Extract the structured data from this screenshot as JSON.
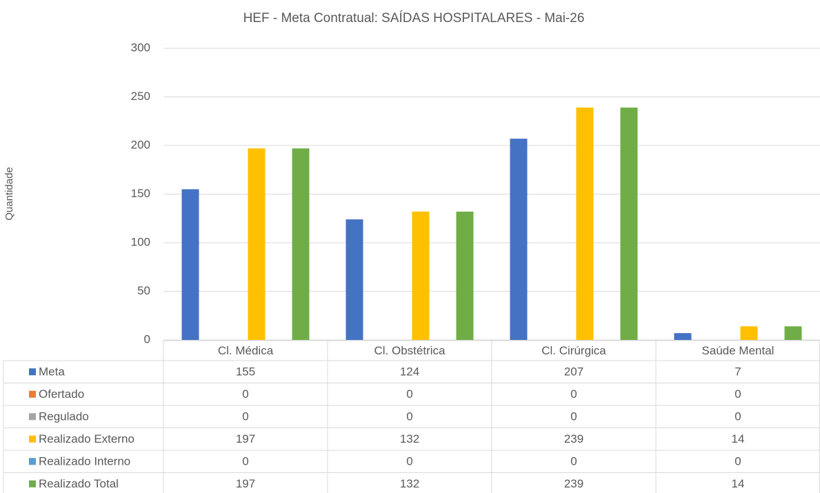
{
  "chart_data": {
    "type": "bar",
    "title": "HEF - Meta Contratual: SAÍDAS HOSPITALARES - Mai-26",
    "y_label": "Quantidade",
    "categories": [
      "Cl. Médica",
      "Cl. Obstétrica",
      "Cl. Cirúrgica",
      "Saúde Mental"
    ],
    "series": [
      {
        "name": "Meta",
        "color": "#4472c4",
        "values": [
          155,
          124,
          207,
          7
        ]
      },
      {
        "name": "Ofertado",
        "color": "#ed7d31",
        "values": [
          0,
          0,
          0,
          0
        ]
      },
      {
        "name": "Regulado",
        "color": "#a5a5a5",
        "values": [
          0,
          0,
          0,
          0
        ]
      },
      {
        "name": "Realizado Externo",
        "color": "#ffc000",
        "values": [
          197,
          132,
          239,
          14
        ]
      },
      {
        "name": "Realizado Interno",
        "color": "#5b9bd5",
        "values": [
          0,
          0,
          0,
          0
        ]
      },
      {
        "name": "Realizado Total",
        "color": "#70ad47",
        "values": [
          197,
          132,
          239,
          14
        ]
      }
    ],
    "ylim": [
      0,
      300
    ],
    "yticks": [
      0,
      50,
      100,
      150,
      200,
      250,
      300
    ],
    "grid": true,
    "data_table": true
  }
}
